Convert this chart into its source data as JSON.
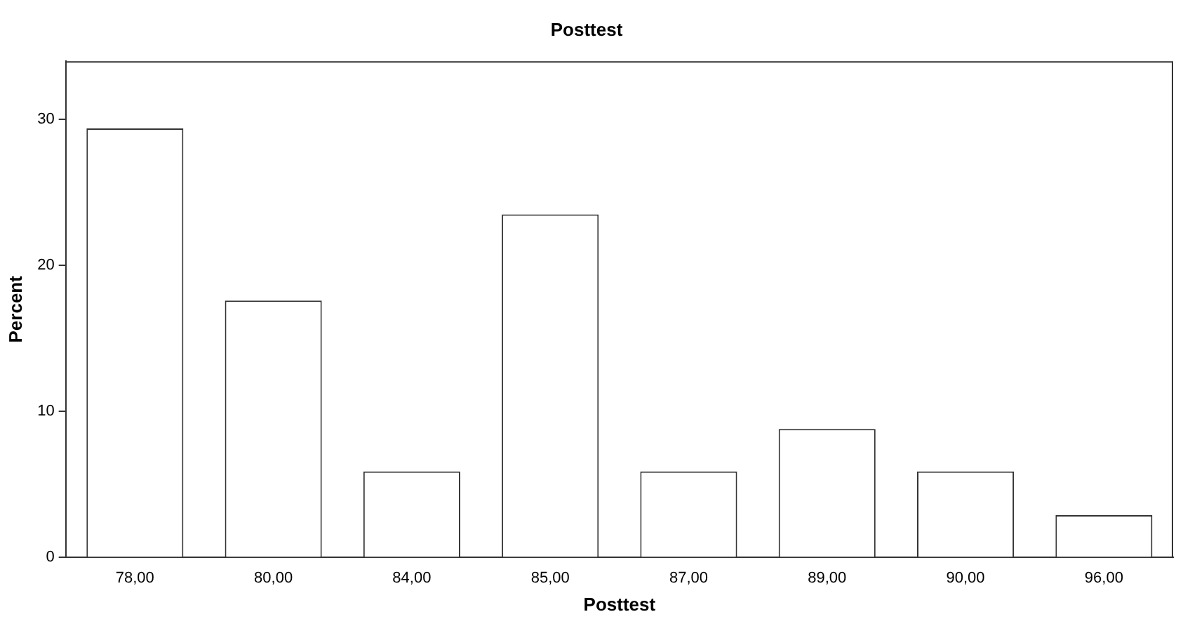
{
  "chart_data": {
    "type": "bar",
    "title": "Posttest",
    "xlabel": "Posttest",
    "ylabel": "Percent",
    "categories": [
      "78,00",
      "80,00",
      "84,00",
      "85,00",
      "87,00",
      "89,00",
      "90,00",
      "96,00"
    ],
    "values": [
      29.4,
      17.6,
      5.9,
      23.5,
      5.9,
      8.8,
      5.9,
      2.9
    ],
    "color": "#ffffff",
    "ylim": [
      0,
      34
    ],
    "yticks": [
      0,
      10,
      20,
      30
    ],
    "grid": false,
    "legend": false
  }
}
